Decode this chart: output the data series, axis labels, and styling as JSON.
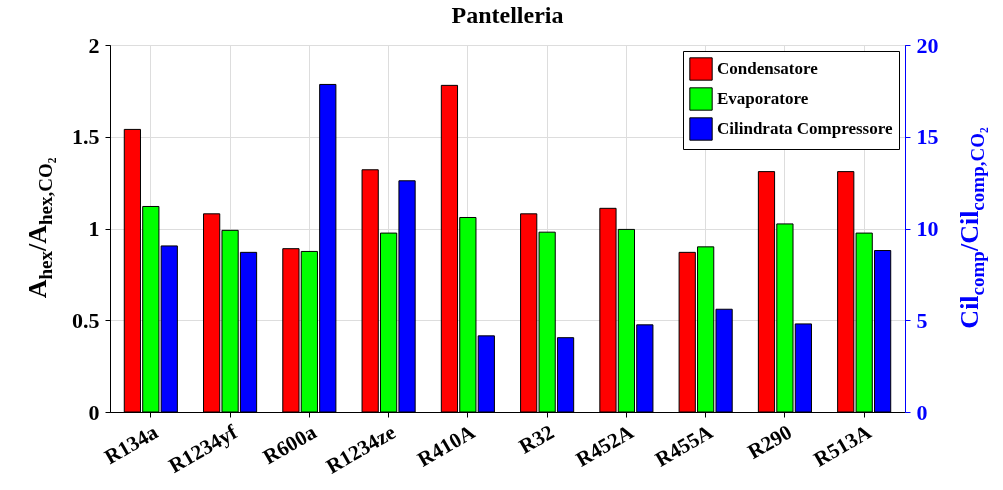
{
  "chart_data": {
    "type": "bar",
    "title": "Pantelleria",
    "ylabel": "A$_{hex}$/A$_{hex,CO₂}$",
    "y2label": "Cil$_{comp}$/Cil$_{comp,CO₂}$",
    "categories": [
      "R134a",
      "R1234yf",
      "R600a",
      "R1234ze",
      "R410A",
      "R32",
      "R452A",
      "R455A",
      "R290",
      "R513A"
    ],
    "series": [
      {
        "name": "Condensatore",
        "color": "#ff0000",
        "values": [
          1.54,
          1.08,
          0.89,
          1.32,
          1.78,
          1.08,
          1.11,
          0.87,
          1.31,
          1.31
        ]
      },
      {
        "name": "Evaporatore",
        "color": "#00ff00",
        "values": [
          1.12,
          0.99,
          0.875,
          0.975,
          1.06,
          0.98,
          0.995,
          0.9,
          1.025,
          0.975
        ]
      },
      {
        "name": "Cilindrata Compressore",
        "color": "#0000ff",
        "axis": "y2",
        "values": [
          9.05,
          8.7,
          17.85,
          12.6,
          4.15,
          4.05,
          4.75,
          5.6,
          4.8,
          8.8
        ]
      }
    ],
    "ylim": [
      0,
      2
    ],
    "yticks": [
      0,
      0.5,
      1,
      1.5,
      2
    ],
    "y2lim": [
      0,
      20
    ],
    "y2ticks": [
      0,
      5,
      10,
      15,
      20
    ],
    "grid": true,
    "legend": "top right"
  }
}
